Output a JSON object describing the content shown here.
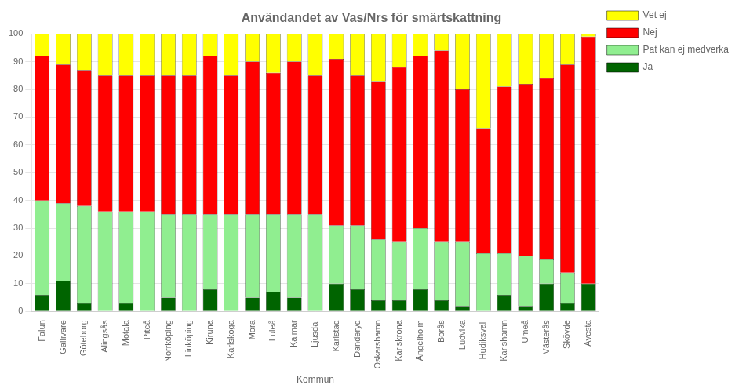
{
  "chart_data": {
    "type": "bar",
    "title": "Användandet av Vas/Nrs för smärtskattning",
    "xlabel": "Kommun",
    "categories": [
      "Falun",
      "Gällivare",
      "Göteborg",
      "Alingsås",
      "Motala",
      "Piteå",
      "Norrköping",
      "Linköping",
      "Kiruna",
      "Karlskoga",
      "Mora",
      "Luleå",
      "Kalmar",
      "Ljusdal",
      "Karlstad",
      "Danderyd",
      "Oskarshamn",
      "Karlskrona",
      "Ängelholm",
      "Borås",
      "Ludvika",
      "Hudiksvall",
      "Karlshamn",
      "Umeå",
      "Västerås",
      "Skövde",
      "Avesta"
    ],
    "series": [
      {
        "name": "Ja",
        "color": "#006400",
        "values": [
          6,
          11,
          3,
          0,
          3,
          0,
          5,
          0,
          8,
          0,
          5,
          7,
          5,
          0,
          10,
          8,
          4,
          4,
          8,
          4,
          2,
          0,
          6,
          2,
          10,
          3,
          10
        ]
      },
      {
        "name": "Pat kan ej medverka",
        "color": "#90EE90",
        "values": [
          34,
          28,
          35,
          36,
          33,
          36,
          30,
          35,
          27,
          35,
          30,
          28,
          30,
          35,
          21,
          23,
          22,
          21,
          22,
          21,
          23,
          21,
          15,
          18,
          9,
          11,
          0
        ]
      },
      {
        "name": "Nej",
        "color": "#FF0000",
        "values": [
          52,
          50,
          49,
          49,
          49,
          49,
          50,
          50,
          57,
          50,
          55,
          51,
          55,
          50,
          60,
          54,
          57,
          63,
          62,
          69,
          55,
          45,
          60,
          62,
          65,
          75,
          89
        ]
      },
      {
        "name": "Vet ej",
        "color": "#FFFF00",
        "values": [
          8,
          11,
          13,
          15,
          15,
          15,
          15,
          15,
          8,
          15,
          10,
          14,
          10,
          15,
          9,
          15,
          17,
          12,
          8,
          6,
          20,
          34,
          19,
          18,
          16,
          11,
          1
        ]
      }
    ],
    "stacked": true,
    "ylim": [
      0,
      100
    ],
    "yticks": [
      0,
      10,
      20,
      30,
      40,
      50,
      60,
      70,
      80,
      90,
      100
    ],
    "grid": true,
    "legend": "right"
  }
}
